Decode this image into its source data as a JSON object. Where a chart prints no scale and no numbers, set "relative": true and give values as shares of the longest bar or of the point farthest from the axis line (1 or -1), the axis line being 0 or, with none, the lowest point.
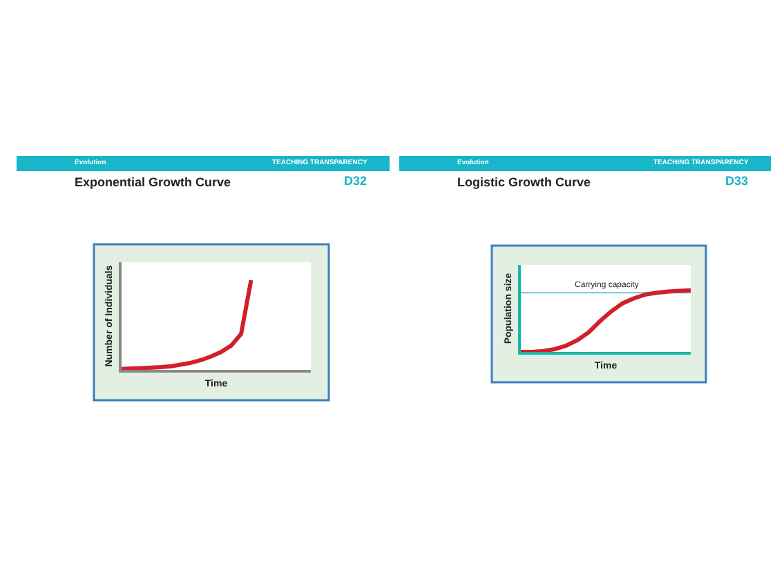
{
  "chart_data": [
    {
      "type": "line",
      "relative": true,
      "title": "Exponential Growth Curve",
      "xlabel": "Time",
      "ylabel": "Number of Individuals",
      "annotations": [
        "Evolution",
        "TEACHING TRANSPARENCY",
        "D32"
      ],
      "categories": [
        null,
        null,
        null,
        null,
        null,
        null,
        null,
        null,
        null,
        null,
        null,
        null,
        null,
        null,
        null,
        null,
        null,
        null,
        null,
        null
      ],
      "series": [
        {
          "color": "#d0202a",
          "values": [
            0.01,
            0.015,
            0.02,
            0.025,
            0.03,
            0.04,
            0.06,
            0.08,
            0.11,
            0.15,
            0.2,
            0.27,
            0.4,
            1.0,
            null,
            null,
            null,
            null,
            null,
            null
          ]
        }
      ],
      "marker": "none",
      "line_style": "solid"
    },
    {
      "type": "line",
      "relative": true,
      "title": "Logistic Growth Curve",
      "xlabel": "Time",
      "ylabel": "Population size",
      "annotations": [
        "Evolution",
        "TEACHING TRANSPARENCY",
        "D33"
      ],
      "categories": [
        null,
        null,
        null,
        null,
        null,
        null,
        null,
        null,
        null,
        null,
        null,
        null,
        null,
        null,
        null,
        null
      ],
      "series": [
        {
          "color": "#d0202a",
          "values": [
            0,
            0,
            0.015,
            0.045,
            0.1,
            0.19,
            0.32,
            0.5,
            0.66,
            0.79,
            0.87,
            0.93,
            0.96,
            0.98,
            0.99,
            1.0
          ]
        }
      ],
      "ref_lines": [
        {
          "axis": "y",
          "value": 0.96,
          "label": "Carrying capacity",
          "color": "#6cc5dc",
          "line_style": "solid"
        }
      ],
      "marker": "none",
      "line_style": "solid"
    }
  ]
}
